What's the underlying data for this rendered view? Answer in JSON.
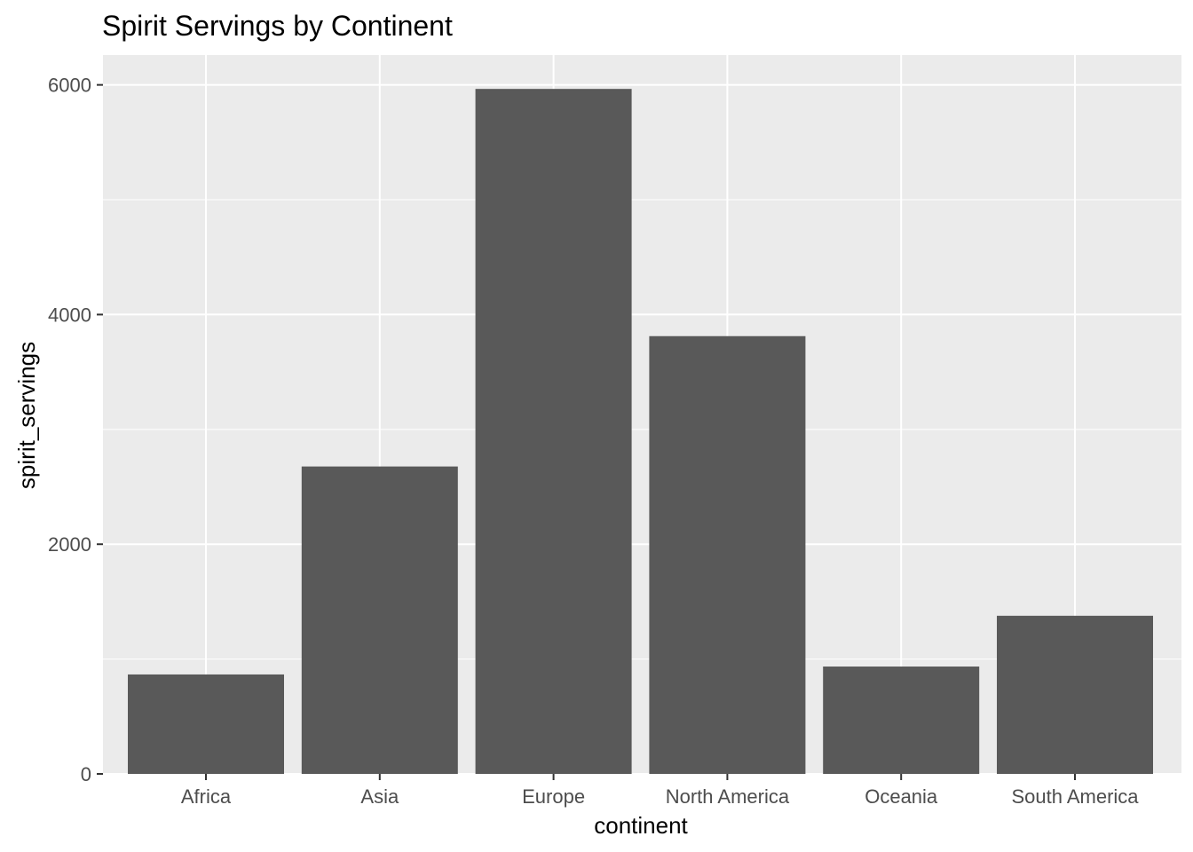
{
  "chart_data": {
    "type": "bar",
    "title": "Spirit Servings by Continent",
    "xlabel": "continent",
    "ylabel": "spirit_servings",
    "categories": [
      "Africa",
      "Asia",
      "Europe",
      "North America",
      "Oceania",
      "South America"
    ],
    "values": [
      866,
      2677,
      5965,
      3812,
      935,
      1377
    ],
    "ylim": [
      0,
      6260
    ],
    "yticks": [
      0,
      2000,
      4000,
      6000
    ],
    "grid": true,
    "legend": "none",
    "colors": {
      "bar": "#595959",
      "panel": "#ebebeb",
      "grid": "#ffffff",
      "tick_text": "#4d4d4d",
      "tick_mark": "#333333"
    }
  }
}
